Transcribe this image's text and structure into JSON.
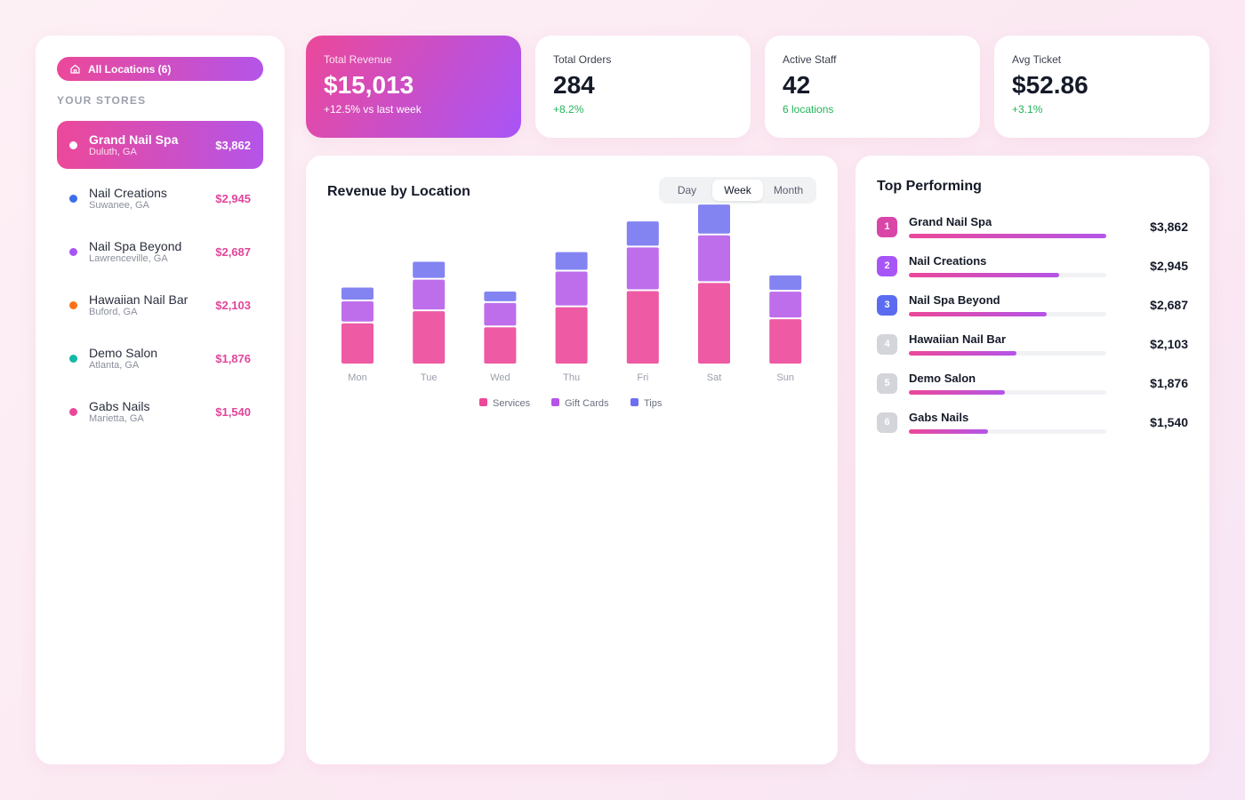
{
  "sidebar": {
    "all_locations": "All Locations (6)",
    "section_label": "YOUR STORES",
    "stores": [
      {
        "name": "Grand Nail Spa",
        "city": "Duluth, GA",
        "amount": "$3,862",
        "color": "#ec4899"
      },
      {
        "name": "Nail Creations",
        "city": "Suwanee, GA",
        "amount": "$2,945",
        "color": "#3b6ee8"
      },
      {
        "name": "Nail Spa Beyond",
        "city": "Lawrenceville, GA",
        "amount": "$2,687",
        "color": "#a855f7"
      },
      {
        "name": "Hawaiian Nail Bar",
        "city": "Buford, GA",
        "amount": "$2,103",
        "color": "#f97316"
      },
      {
        "name": "Demo Salon",
        "city": "Atlanta, GA",
        "amount": "$1,876",
        "color": "#14b8a6"
      },
      {
        "name": "Gabs Nails",
        "city": "Marietta, GA",
        "amount": "$1,540",
        "color": "#ec4899"
      }
    ]
  },
  "stats": {
    "revenue": {
      "label": "Total Revenue",
      "value": "$15,013",
      "sub": "+12.5% vs last week"
    },
    "orders": {
      "label": "Total Orders",
      "value": "284",
      "sub": "+8.2%"
    },
    "staff": {
      "label": "Active Staff",
      "value": "42",
      "sub": "6 locations"
    },
    "ticket": {
      "label": "Avg Ticket",
      "value": "$52.86",
      "sub": "+3.1%"
    }
  },
  "chart": {
    "title": "Revenue by Location",
    "ranges": [
      "Day",
      "Week",
      "Month"
    ],
    "selected_range": "Week"
  },
  "chart_data": {
    "type": "bar",
    "stacked": true,
    "categories": [
      "Mon",
      "Tue",
      "Wed",
      "Thu",
      "Fri",
      "Sat",
      "Sun"
    ],
    "series": [
      {
        "name": "Services",
        "values": [
          50,
          65,
          45,
          70,
          90,
          100,
          55
        ],
        "color": "#ec4899"
      },
      {
        "name": "Gift Cards",
        "values": [
          25,
          37,
          28,
          42,
          52,
          57,
          32
        ],
        "color": "#b455e8"
      },
      {
        "name": "Tips",
        "values": [
          15,
          20,
          12,
          22,
          30,
          36,
          18
        ],
        "color": "#6d6ff0"
      }
    ],
    "legend": [
      "Services",
      "Gift Cards",
      "Tips"
    ]
  },
  "top": {
    "title": "Top Performing",
    "items": [
      {
        "rank": "1",
        "name": "Grand Nail Spa",
        "amount": "$3,862",
        "share": 1.0,
        "color": "#d946a8"
      },
      {
        "rank": "2",
        "name": "Nail Creations",
        "amount": "$2,945",
        "share": 0.762,
        "color": "#a855f7"
      },
      {
        "rank": "3",
        "name": "Nail Spa Beyond",
        "amount": "$2,687",
        "share": 0.696,
        "color": "#5b6cf0"
      },
      {
        "rank": "4",
        "name": "Hawaiian Nail Bar",
        "amount": "$2,103",
        "share": 0.545,
        "color": "#d3d5db"
      },
      {
        "rank": "5",
        "name": "Demo Salon",
        "amount": "$1,876",
        "share": 0.486,
        "color": "#d3d5db"
      },
      {
        "rank": "6",
        "name": "Gabs Nails",
        "amount": "$1,540",
        "share": 0.399,
        "color": "#d3d5db"
      }
    ]
  }
}
